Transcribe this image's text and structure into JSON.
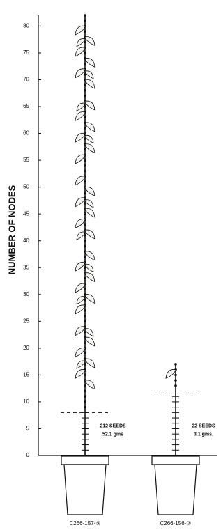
{
  "chart_data": {
    "type": "bar",
    "y_label": "NUMBER OF NODES",
    "categories": [
      "C266-157-⑨",
      "C266-156-⑦"
    ],
    "values": [
      82,
      17
    ],
    "markers": [
      8,
      12
    ],
    "annotations": [
      [
        "212 SEEDS",
        "52.1 gms"
      ],
      [
        "22 SEEDS",
        "3.1 gms."
      ]
    ],
    "color": "#111111",
    "ylim": [
      0,
      82
    ],
    "yticks": [
      0,
      5,
      10,
      15,
      20,
      25,
      30,
      35,
      40,
      45,
      50,
      55,
      60,
      65,
      70,
      75,
      80
    ]
  }
}
